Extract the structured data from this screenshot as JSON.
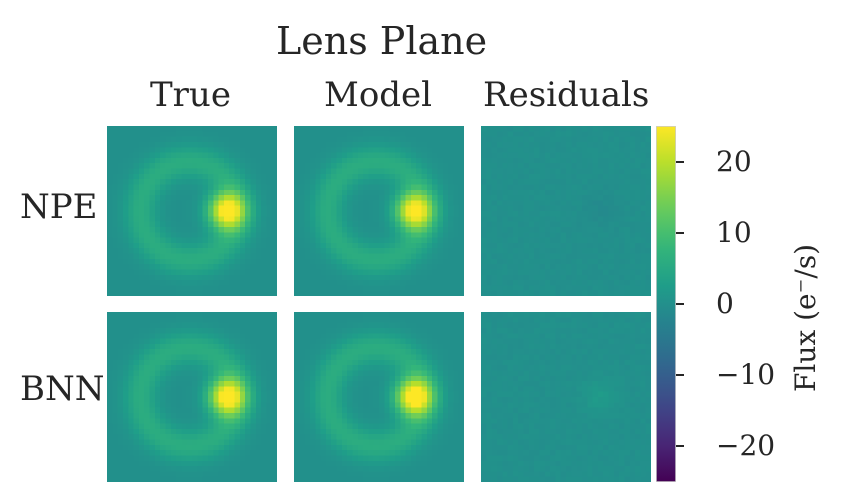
{
  "figure": {
    "title": "Lens Plane",
    "columns": [
      "True",
      "Model",
      "Residuals"
    ],
    "rows": [
      "NPE",
      "BNN"
    ]
  },
  "colorbar": {
    "label": "Flux (e⁻/s)",
    "ticks": [
      "20",
      "10",
      "0",
      "−10",
      "−20"
    ],
    "range": [
      -25,
      25
    ],
    "colormap": "viridis"
  },
  "chart_data": {
    "type": "heatmap",
    "title": "Lens Plane",
    "columns": [
      "True",
      "Model",
      "Residuals"
    ],
    "rows": [
      "NPE",
      "BNN"
    ],
    "colorbar_label": "Flux (e⁻/s)",
    "vmin": -25,
    "vmax": 25,
    "colormap": "viridis",
    "panels": [
      {
        "row": "NPE",
        "col": "True",
        "ring_peak": 6,
        "bright_spot_peak": 25
      },
      {
        "row": "NPE",
        "col": "Model",
        "ring_peak": 6,
        "bright_spot_peak": 24
      },
      {
        "row": "NPE",
        "col": "Residuals",
        "ring_peak": 0,
        "bright_spot_peak": -1
      },
      {
        "row": "BNN",
        "col": "True",
        "ring_peak": 6,
        "bright_spot_peak": 25
      },
      {
        "row": "BNN",
        "col": "Model",
        "ring_peak": 6,
        "bright_spot_peak": 26
      },
      {
        "row": "BNN",
        "col": "Residuals",
        "ring_peak": 0,
        "bright_spot_peak": 2
      }
    ]
  }
}
